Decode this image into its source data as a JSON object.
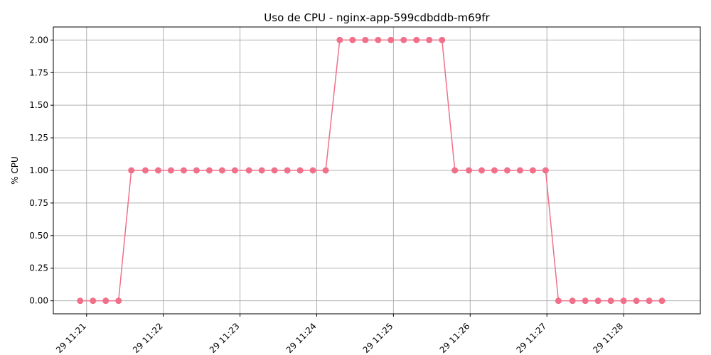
{
  "chart_data": {
    "type": "line",
    "title": "Uso de CPU - nginx-app-599cdbddb-m69fr",
    "xlabel": "",
    "ylabel": "% CPU",
    "x_ticks": [
      "29 11:21",
      "29 11:22",
      "29 11:23",
      "29 11:24",
      "29 11:25",
      "29 11:26",
      "29 11:27",
      "29 11:28"
    ],
    "x_tick_values": [
      "11:21",
      "11:22",
      "11:23",
      "11:24",
      "11:25",
      "11:26",
      "11:27",
      "11:28"
    ],
    "y_ticks": [
      "0.00",
      "0.25",
      "0.50",
      "0.75",
      "1.00",
      "1.25",
      "1.50",
      "1.75",
      "2.00"
    ],
    "ylim": [
      -0.1,
      2.1
    ],
    "xlim": [
      "11:20:34",
      "11:29:00"
    ],
    "grid": true,
    "series": [
      {
        "color": "#f0708a",
        "marker": "circle",
        "x": [
          "11:20:55",
          "11:21:05",
          "11:21:15",
          "11:21:25",
          "11:21:35",
          "11:21:46",
          "11:21:56",
          "11:22:06",
          "11:22:16",
          "11:22:26",
          "11:22:36",
          "11:22:46",
          "11:22:56",
          "11:23:07",
          "11:23:17",
          "11:23:27",
          "11:23:37",
          "11:23:47",
          "11:23:57",
          "11:24:07",
          "11:24:18",
          "11:24:28",
          "11:24:38",
          "11:24:48",
          "11:24:58",
          "11:25:08",
          "11:25:18",
          "11:25:28",
          "11:25:38",
          "11:25:48",
          "11:25:59",
          "11:26:09",
          "11:26:19",
          "11:26:29",
          "11:26:39",
          "11:26:49",
          "11:26:59",
          "11:27:09",
          "11:27:20",
          "11:27:30",
          "11:27:40",
          "11:27:50",
          "11:28:00",
          "11:28:10",
          "11:28:20",
          "11:28:30"
        ],
        "values": [
          0,
          0,
          0,
          0,
          1,
          1,
          1,
          1,
          1,
          1,
          1,
          1,
          1,
          1,
          1,
          1,
          1,
          1,
          1,
          1,
          2,
          2,
          2,
          2,
          2,
          2,
          2,
          2,
          2,
          1,
          1,
          1,
          1,
          1,
          1,
          1,
          1,
          0,
          0,
          0,
          0,
          0,
          0,
          0,
          0,
          0
        ]
      }
    ]
  }
}
